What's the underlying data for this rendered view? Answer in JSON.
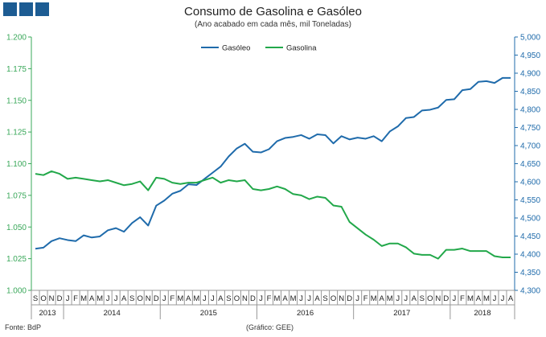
{
  "header": {
    "title": "Consumo de Gasolina e Gasóleo",
    "subtitle": "(Ano acabado em cada mês,  mil Toneladas)"
  },
  "footer": {
    "source": "Fonte: BdP",
    "graphic": "(Gráfico: GEE)"
  },
  "colors": {
    "gasoleo": "#1f6bab",
    "gasolina": "#22a84a",
    "left_axis": "#3aa85a",
    "right_axis": "#1f6bab",
    "logo": "#1d5c93"
  },
  "chart_data": {
    "type": "line",
    "legend_position": "top-center",
    "grid": false,
    "x_month_labels": [
      "S",
      "O",
      "N",
      "D",
      "J",
      "F",
      "M",
      "A",
      "M",
      "J",
      "J",
      "A",
      "S",
      "O",
      "N",
      "D",
      "J",
      "F",
      "M",
      "A",
      "M",
      "J",
      "J",
      "A",
      "S",
      "O",
      "N",
      "D",
      "J",
      "F",
      "M",
      "A",
      "M",
      "J",
      "J",
      "A",
      "S",
      "O",
      "N",
      "D",
      "J",
      "F",
      "M",
      "A",
      "M",
      "J",
      "J",
      "A",
      "S",
      "O",
      "N",
      "D",
      "J",
      "F",
      "M",
      "A",
      "M",
      "J",
      "J",
      "A"
    ],
    "year_groups": [
      {
        "label": "2013",
        "months": 4
      },
      {
        "label": "2014",
        "months": 12
      },
      {
        "label": "2015",
        "months": 12
      },
      {
        "label": "2016",
        "months": 12
      },
      {
        "label": "2017",
        "months": 12
      },
      {
        "label": "2018",
        "months": 8
      }
    ],
    "y_left": {
      "min": 1.0,
      "max": 1.2,
      "step": 0.025,
      "ticks": [
        "1.000",
        "1.025",
        "1.050",
        "1.075",
        "1.100",
        "1.125",
        "1.150",
        "1.175",
        "1.200"
      ]
    },
    "y_right": {
      "min": 4.3,
      "max": 5.0,
      "step": 0.05,
      "ticks": [
        "4,300",
        "4,350",
        "4,400",
        "4,450",
        "4,500",
        "4,550",
        "4,600",
        "4,650",
        "4,700",
        "4,750",
        "4,800",
        "4,850",
        "4,900",
        "4,950",
        "5,000"
      ]
    },
    "series": [
      {
        "name": "Gasóleo",
        "axis": "right",
        "color": "#1f6bab",
        "values": [
          4.415,
          4.418,
          4.436,
          4.444,
          4.439,
          4.436,
          4.452,
          4.446,
          4.449,
          4.466,
          4.472,
          4.462,
          4.486,
          4.502,
          4.479,
          4.534,
          4.548,
          4.567,
          4.575,
          4.593,
          4.591,
          4.608,
          4.625,
          4.642,
          4.67,
          4.692,
          4.705,
          4.683,
          4.681,
          4.69,
          4.712,
          4.721,
          4.724,
          4.729,
          4.719,
          4.731,
          4.729,
          4.706,
          4.726,
          4.717,
          4.722,
          4.719,
          4.726,
          4.712,
          4.739,
          4.753,
          4.776,
          4.779,
          4.797,
          4.799,
          4.805,
          4.826,
          4.828,
          4.853,
          4.856,
          4.876,
          4.878,
          4.873,
          4.887,
          4.887
        ]
      },
      {
        "name": "Gasolina",
        "axis": "left",
        "color": "#22a84a",
        "values": [
          1.092,
          1.091,
          1.094,
          1.092,
          1.088,
          1.089,
          1.088,
          1.087,
          1.086,
          1.087,
          1.085,
          1.083,
          1.084,
          1.086,
          1.079,
          1.089,
          1.088,
          1.085,
          1.084,
          1.085,
          1.085,
          1.087,
          1.089,
          1.085,
          1.087,
          1.086,
          1.087,
          1.08,
          1.079,
          1.08,
          1.082,
          1.08,
          1.076,
          1.075,
          1.072,
          1.074,
          1.073,
          1.067,
          1.066,
          1.054,
          1.049,
          1.044,
          1.04,
          1.035,
          1.037,
          1.037,
          1.034,
          1.029,
          1.028,
          1.028,
          1.025,
          1.032,
          1.032,
          1.033,
          1.031,
          1.031,
          1.031,
          1.027,
          1.026,
          1.026
        ]
      }
    ]
  }
}
